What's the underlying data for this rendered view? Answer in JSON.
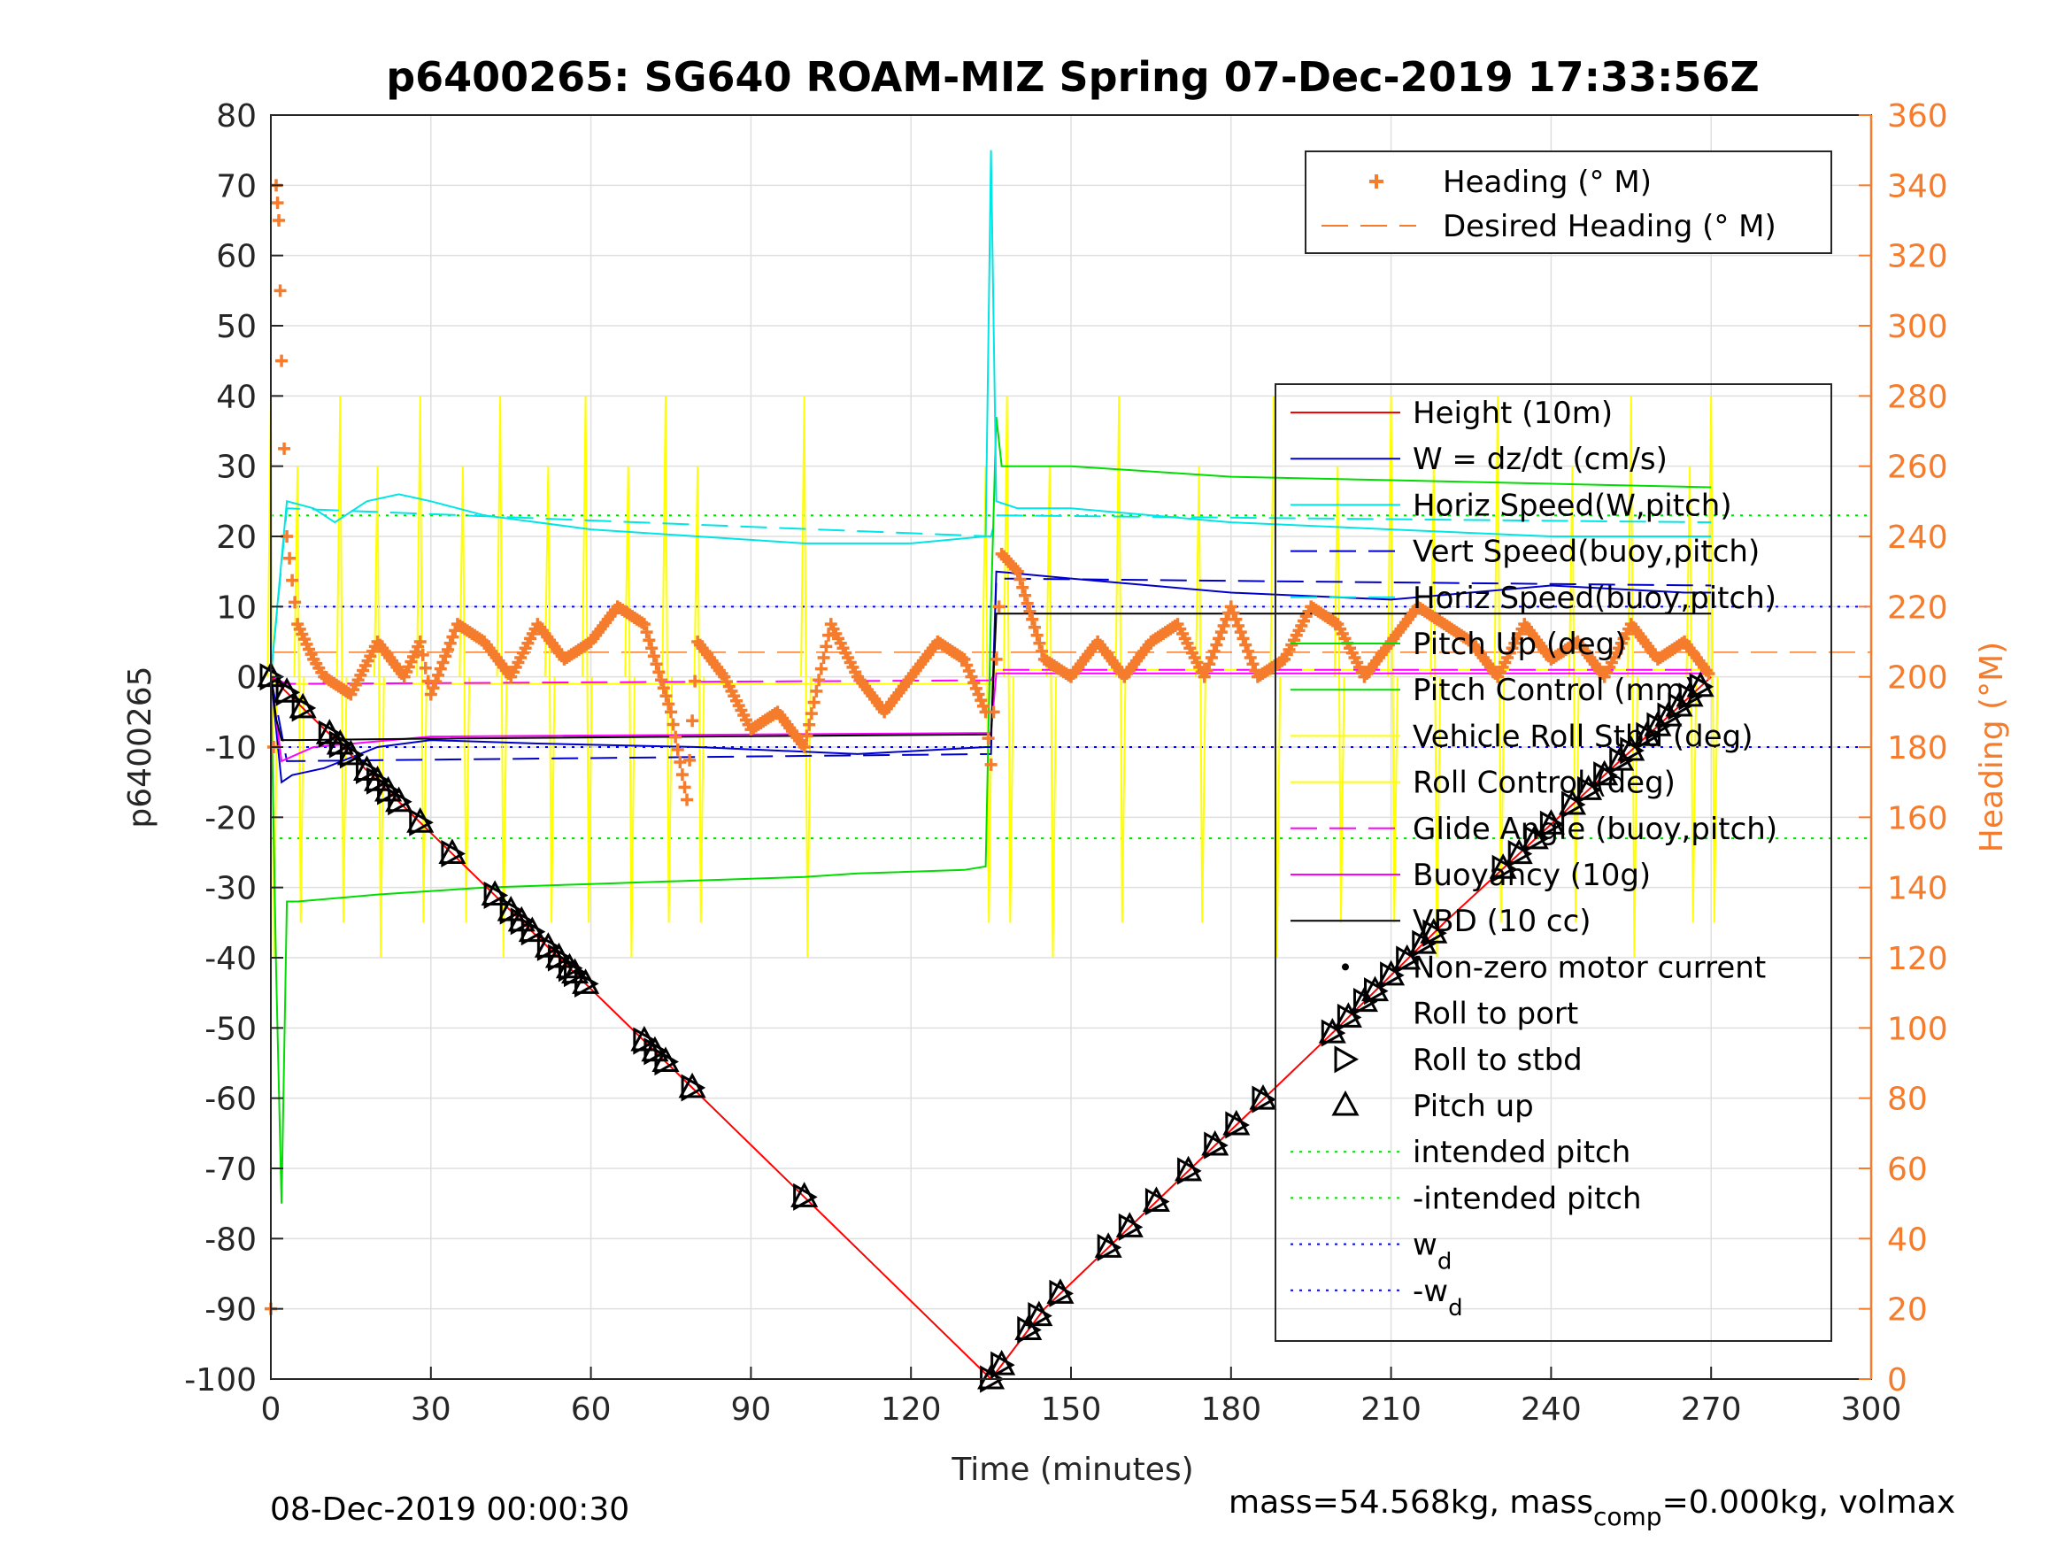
{
  "chart_data": {
    "type": "line",
    "title": "p6400265: SG640 ROAM-MIZ Spring 07-Dec-2019 17:33:56Z",
    "xlabel": "Time (minutes)",
    "ylabel_left": "p6400265",
    "ylabel_right": "Heading (°M)",
    "xlim": [
      0,
      300
    ],
    "ylim_left": [
      -100,
      80
    ],
    "ylim_right": [
      0,
      360
    ],
    "xticks": [
      "0",
      "30",
      "60",
      "90",
      "120",
      "150",
      "180",
      "210",
      "240",
      "270",
      "300"
    ],
    "yticks_left": [
      "80",
      "70",
      "60",
      "50",
      "40",
      "30",
      "20",
      "10",
      "0",
      "-10",
      "-20",
      "-30",
      "-40",
      "-50",
      "-60",
      "-70",
      "-80",
      "-90",
      "-100"
    ],
    "yticks_right": [
      "360",
      "340",
      "320",
      "300",
      "280",
      "260",
      "240",
      "220",
      "200",
      "180",
      "160",
      "140",
      "120",
      "100",
      "80",
      "60",
      "40",
      "20",
      "0"
    ],
    "grid": true,
    "footer_left": "08-Dec-2019 00:00:30",
    "footer_right_pre": "mass=54.568kg, mass",
    "footer_right_sub": "comp",
    "footer_right_post": "=0.000kg, volmax",
    "legend_heading": [
      {
        "name": "Heading (° M)",
        "color": "#f47c2c",
        "style": "plus"
      },
      {
        "name": "Desired Heading (° M)",
        "color": "#f47c2c",
        "style": "dashed"
      }
    ],
    "legend_main": [
      {
        "name": "Height (10m)",
        "color": "#ff0000",
        "style": "solid"
      },
      {
        "name": "W = dz/dt (cm/s)",
        "color": "#0000cc",
        "style": "solid"
      },
      {
        "name": "Horiz Speed(W,pitch)",
        "color": "#00e5e5",
        "style": "solid"
      },
      {
        "name": "Vert Speed(buoy,pitch)",
        "color": "#0000cc",
        "style": "dashed"
      },
      {
        "name": "Horiz Speed(buoy,pitch)",
        "color": "#00e5e5",
        "style": "dashed"
      },
      {
        "name": "Pitch Up (deg)",
        "color": "#00dd00",
        "style": "solid"
      },
      {
        "name": "Pitch Control (mm)",
        "color": "#00dd00",
        "style": "solid"
      },
      {
        "name": "Vehicle Roll Stbd (deg)",
        "color": "#ffff00",
        "style": "solid"
      },
      {
        "name": "Roll Control (deg)",
        "color": "#ffff00",
        "style": "solid"
      },
      {
        "name": "Glide Angle (buoy,pitch)",
        "color": "#ff00ff",
        "style": "dashed"
      },
      {
        "name": "Buoyancy (10g)",
        "color": "#ff00ff",
        "style": "solid"
      },
      {
        "name": "VBD (10 cc)",
        "color": "#000000",
        "style": "solid"
      },
      {
        "name": "Non-zero motor current",
        "color": "#000000",
        "style": "dot"
      },
      {
        "name": "Roll to port",
        "color": "#000000",
        "style": "none"
      },
      {
        "name": "Roll to stbd",
        "color": "#000000",
        "style": "tri-right"
      },
      {
        "name": "Pitch up",
        "color": "#000000",
        "style": "tri-up"
      },
      {
        "name": "intended pitch",
        "color": "#00dd00",
        "style": "dotted"
      },
      {
        "name": "-intended pitch",
        "color": "#00dd00",
        "style": "dotted"
      },
      {
        "name": "w",
        "sub": "d",
        "color": "#0000ff",
        "style": "dotted"
      },
      {
        "name": "-w",
        "sub": "d",
        "color": "#0000ff",
        "style": "dotted"
      }
    ],
    "series": {
      "height_x": [
        0,
        135,
        145,
        200,
        220,
        270
      ],
      "height_y": [
        0,
        -100,
        -90,
        -50,
        -35,
        0
      ],
      "w_x": [
        0,
        2,
        4,
        10,
        20,
        30,
        50,
        80,
        110,
        134,
        135,
        136,
        150,
        180,
        210,
        240,
        265,
        270
      ],
      "w_y": [
        0,
        -15,
        -14,
        -13,
        -10,
        -9,
        -9.5,
        -10,
        -11,
        -10,
        -10,
        15,
        14,
        12,
        11,
        13,
        12,
        12
      ],
      "horiz_x": [
        0,
        3,
        8,
        12,
        18,
        24,
        30,
        40,
        60,
        80,
        100,
        120,
        134,
        135,
        136,
        140,
        150,
        180,
        210,
        240,
        270
      ],
      "horiz_y": [
        0,
        25,
        24,
        22,
        25,
        26,
        25,
        23,
        21,
        20,
        19,
        19,
        20,
        75,
        25,
        24,
        24,
        22,
        21,
        20,
        20
      ],
      "vert_buoy_x": [
        0,
        3,
        135,
        136,
        270
      ],
      "vert_buoy_y": [
        0,
        -12,
        -11,
        14,
        13
      ],
      "horiz_buoy_x": [
        0,
        3,
        135,
        136,
        270
      ],
      "horiz_buoy_y": [
        0,
        24,
        20,
        23,
        22
      ],
      "pitch_x": [
        0,
        1,
        2,
        3,
        5,
        20,
        40,
        60,
        80,
        100,
        110,
        130,
        134,
        135,
        136,
        137,
        140,
        150,
        180,
        210,
        240,
        270
      ],
      "pitch_y": [
        0,
        -42,
        -75,
        -32,
        -32,
        -31,
        -30,
        -29.5,
        -29,
        -28.5,
        -28,
        -27.5,
        -27,
        10,
        37,
        30,
        30,
        30,
        28.5,
        28,
        27.5,
        27
      ],
      "vbd_x": [
        0,
        1,
        2,
        5,
        30,
        135,
        136,
        270
      ],
      "vbd_y": [
        0,
        -6,
        -9,
        -9,
        -8.8,
        -8.2,
        9,
        9
      ],
      "buoy_x": [
        0,
        2,
        8,
        30,
        135,
        136,
        270
      ],
      "buoy_y": [
        0,
        -12,
        -10,
        -8.5,
        -8,
        0.5,
        0.5
      ],
      "glide_x": [
        0,
        3,
        135,
        136,
        270
      ],
      "glide_y": [
        0,
        -1,
        -0.5,
        1,
        1
      ],
      "roll_spikes_x": [
        0,
        5,
        13,
        20,
        28,
        36,
        43,
        52,
        59,
        67,
        74,
        80,
        100,
        134,
        138,
        146,
        159,
        174,
        188,
        200,
        210,
        218,
        230,
        244,
        255,
        266,
        270
      ],
      "heading_x": [
        0,
        1,
        1.5,
        2,
        3,
        5,
        8,
        10,
        15,
        20,
        25,
        28,
        30,
        35,
        40,
        45,
        50,
        55,
        60,
        65,
        70,
        75,
        78,
        80,
        85,
        90,
        95,
        100,
        105,
        110,
        115,
        120,
        125,
        130,
        134,
        135,
        137,
        140,
        145,
        150,
        155,
        160,
        165,
        170,
        175,
        180,
        185,
        190,
        195,
        200,
        205,
        210,
        215,
        220,
        225,
        230,
        235,
        240,
        245,
        250,
        255,
        260,
        265,
        270
      ],
      "heading_y": [
        20,
        340,
        330,
        290,
        240,
        215,
        205,
        200,
        195,
        210,
        200,
        210,
        195,
        215,
        210,
        200,
        215,
        205,
        210,
        220,
        215,
        190,
        165,
        210,
        200,
        185,
        190,
        180,
        215,
        200,
        190,
        200,
        210,
        205,
        190,
        175,
        235,
        230,
        205,
        200,
        210,
        200,
        210,
        215,
        200,
        220,
        200,
        205,
        220,
        215,
        200,
        210,
        220,
        215,
        210,
        200,
        215,
        205,
        210,
        200,
        215,
        205,
        210,
        200
      ],
      "desired_heading": 207,
      "intended_pitch": 23,
      "w_d": 10,
      "pitch_up_marks_desc": [
        0,
        3,
        6,
        11,
        13,
        15,
        18,
        20,
        22,
        24,
        28,
        34,
        42,
        45,
        47,
        49,
        52,
        54,
        56,
        57,
        59,
        70,
        72,
        74,
        79,
        100
      ],
      "pitch_up_marks_asc": [
        135,
        137,
        142,
        144,
        148,
        157,
        161,
        166,
        172,
        177,
        181,
        186,
        199,
        202,
        205,
        207,
        210,
        213,
        216,
        218,
        231,
        234,
        237,
        240,
        244,
        247,
        250,
        253,
        255,
        258,
        260,
        262,
        264,
        266,
        268
      ]
    }
  }
}
